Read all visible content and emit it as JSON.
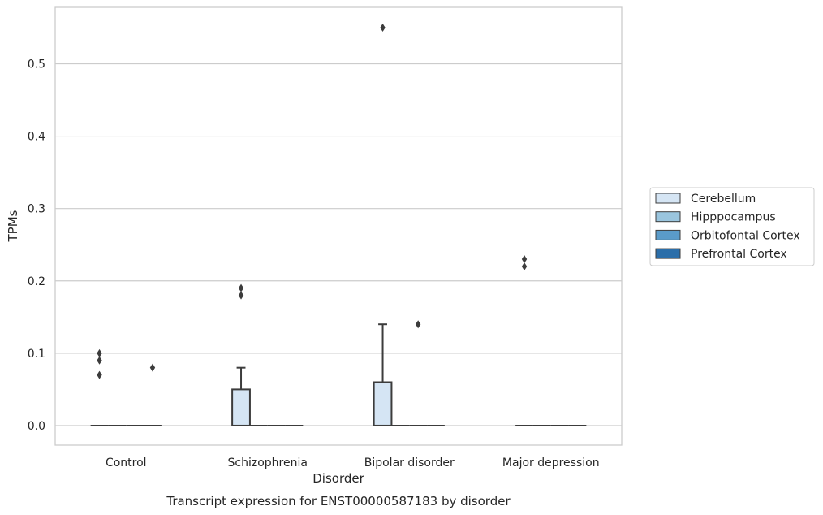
{
  "chart_data": {
    "type": "box",
    "caption": "Transcript expression for ENST00000587183 by disorder",
    "xlabel": "Disorder",
    "ylabel": "TPMs",
    "ylim": [
      -0.027,
      0.578
    ],
    "yticks": [
      0.0,
      0.1,
      0.2,
      0.3,
      0.4,
      0.5
    ],
    "ytick_labels": [
      "0.0",
      "0.1",
      "0.2",
      "0.3",
      "0.4",
      "0.5"
    ],
    "grid": true,
    "legend_position": "right",
    "categories": [
      "Control",
      "Schizophrenia",
      "Bipolar disorder",
      "Major depression"
    ],
    "series": [
      {
        "name": "Cerebellum",
        "color": "#d5e5f4",
        "boxes": [
          {
            "q1": 0,
            "median": 0,
            "q3": 0,
            "whisker_low": 0,
            "whisker_high": 0,
            "outliers": [
              0.07,
              0.09,
              0.1
            ]
          },
          {
            "q1": 0,
            "median": 0,
            "q3": 0.05,
            "whisker_low": 0,
            "whisker_high": 0.08,
            "outliers": [
              0.18,
              0.19
            ]
          },
          {
            "q1": 0,
            "median": 0,
            "q3": 0.06,
            "whisker_low": 0,
            "whisker_high": 0.14,
            "outliers": [
              0.55
            ]
          },
          {
            "q1": 0,
            "median": 0,
            "q3": 0,
            "whisker_low": 0,
            "whisker_high": 0,
            "outliers": [
              0.22,
              0.23
            ]
          }
        ]
      },
      {
        "name": "Hipppocampus",
        "color": "#9ac5de",
        "boxes": [
          {
            "q1": 0,
            "median": 0,
            "q3": 0,
            "whisker_low": 0,
            "whisker_high": 0,
            "outliers": []
          },
          {
            "q1": 0,
            "median": 0,
            "q3": 0,
            "whisker_low": 0,
            "whisker_high": 0,
            "outliers": []
          },
          {
            "q1": 0,
            "median": 0,
            "q3": 0,
            "whisker_low": 0,
            "whisker_high": 0,
            "outliers": []
          },
          {
            "q1": 0,
            "median": 0,
            "q3": 0,
            "whisker_low": 0,
            "whisker_high": 0,
            "outliers": []
          }
        ]
      },
      {
        "name": "Orbitofontal Cortex",
        "color": "#5a9bc9",
        "boxes": [
          {
            "q1": 0,
            "median": 0,
            "q3": 0,
            "whisker_low": 0,
            "whisker_high": 0,
            "outliers": []
          },
          {
            "q1": 0,
            "median": 0,
            "q3": 0,
            "whisker_low": 0,
            "whisker_high": 0,
            "outliers": []
          },
          {
            "q1": 0,
            "median": 0,
            "q3": 0,
            "whisker_low": 0,
            "whisker_high": 0,
            "outliers": [
              0.14
            ]
          },
          {
            "q1": 0,
            "median": 0,
            "q3": 0,
            "whisker_low": 0,
            "whisker_high": 0,
            "outliers": []
          }
        ]
      },
      {
        "name": "Prefrontal Cortex",
        "color": "#2b6ea9",
        "boxes": [
          {
            "q1": 0,
            "median": 0,
            "q3": 0,
            "whisker_low": 0,
            "whisker_high": 0,
            "outliers": [
              0.08
            ]
          },
          {
            "q1": 0,
            "median": 0,
            "q3": 0,
            "whisker_low": 0,
            "whisker_high": 0,
            "outliers": []
          },
          {
            "q1": 0,
            "median": 0,
            "q3": 0,
            "whisker_low": 0,
            "whisker_high": 0,
            "outliers": []
          },
          {
            "q1": 0,
            "median": 0,
            "q3": 0,
            "whisker_low": 0,
            "whisker_high": 0,
            "outliers": []
          }
        ]
      }
    ]
  }
}
